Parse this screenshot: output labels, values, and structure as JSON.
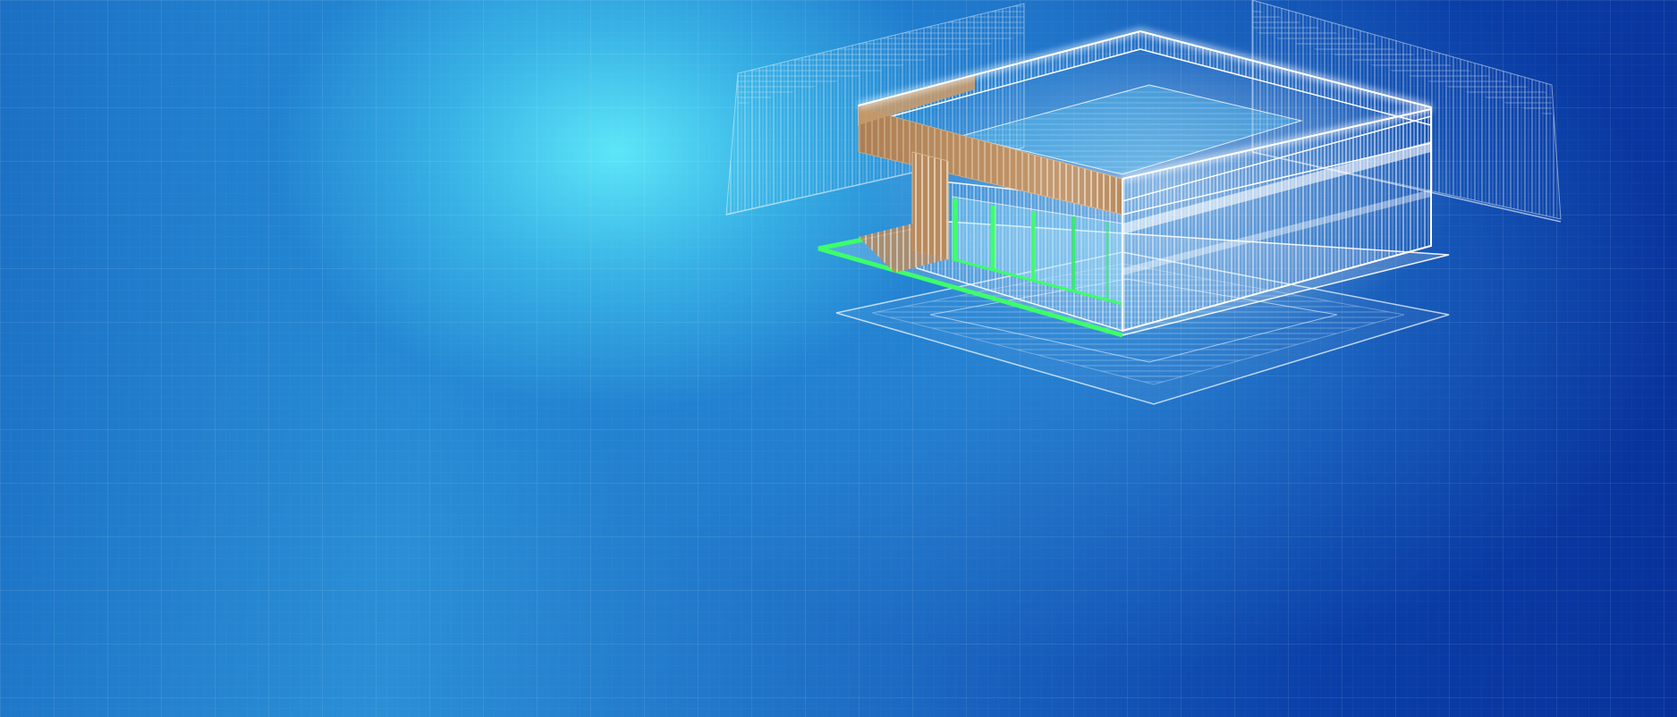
{
  "scene": {
    "subject": "blueprint-building-wireframe",
    "colors": {
      "background_light": "#5fe6f5",
      "background_dark": "#08319b",
      "wireframe": "#e8f6ff",
      "wood_facade": "#b88a5e",
      "glass_green": "#3dff6a"
    }
  }
}
